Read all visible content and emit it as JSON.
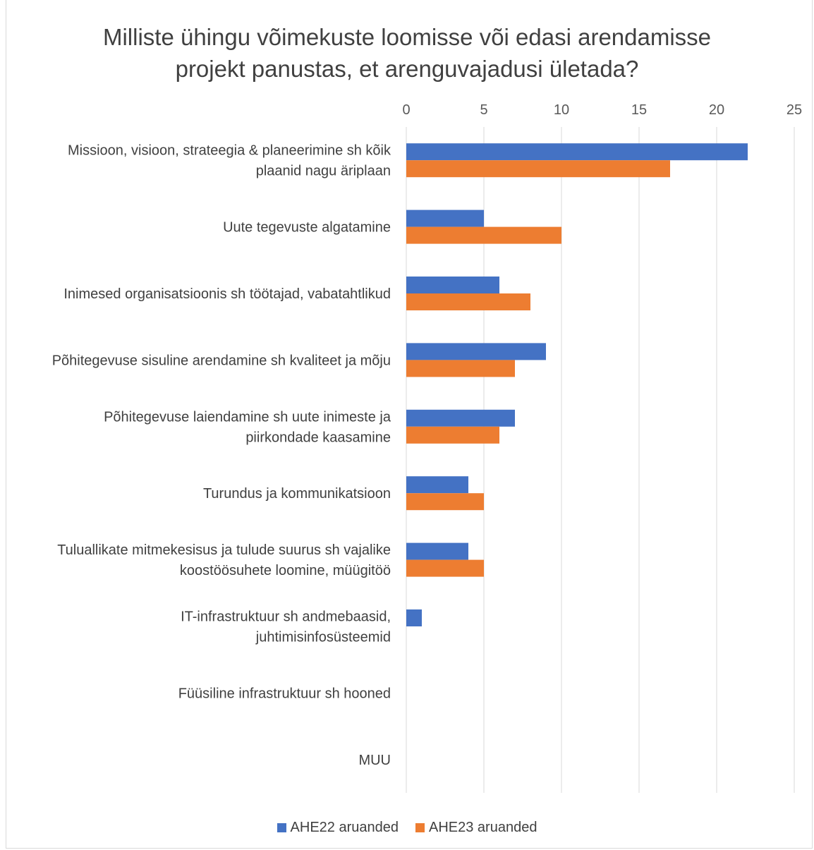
{
  "chart_data": {
    "type": "bar",
    "orientation": "horizontal",
    "title": "Milliste ühingu võimekuste loomisse või edasi arendamisse projekt panustas, et arenguvajadusi ületada?",
    "xlim": [
      0,
      25
    ],
    "xticks": [
      0,
      5,
      10,
      15,
      20,
      25
    ],
    "x_axis_position": "top",
    "grid": true,
    "legend_position": "bottom",
    "categories": [
      [
        "Missioon, visioon, strateegia & planeerimine sh kõik",
        "plaanid nagu äriplaan"
      ],
      [
        "Uute tegevuste algatamine"
      ],
      [
        "Inimesed organisatsioonis sh töötajad, vabatahtlikud"
      ],
      [
        "Põhitegevuse sisuline arendamine sh kvaliteet ja mõju"
      ],
      [
        "Põhitegevuse laiendamine sh uute inimeste ja",
        "piirkondade kaasamine"
      ],
      [
        "Turundus ja kommunikatsioon"
      ],
      [
        "Tuluallikate mitmekesisus ja tulude suurus sh vajalike",
        "koostöösuhete loomine, müügitöö"
      ],
      [
        "IT-infrastruktuur sh andmebaasid,",
        "juhtimisinfosüsteemid"
      ],
      [
        "Füüsiline infrastruktuur sh hooned"
      ],
      [
        "MUU"
      ]
    ],
    "series": [
      {
        "name": "AHE22 aruanded",
        "color": "#4472C4",
        "values": [
          22,
          5,
          6,
          9,
          7,
          4,
          4,
          1,
          0,
          0
        ]
      },
      {
        "name": "AHE23 aruanded",
        "color": "#ED7D31",
        "values": [
          17,
          10,
          8,
          7,
          6,
          5,
          5,
          0,
          0,
          0
        ]
      }
    ]
  }
}
